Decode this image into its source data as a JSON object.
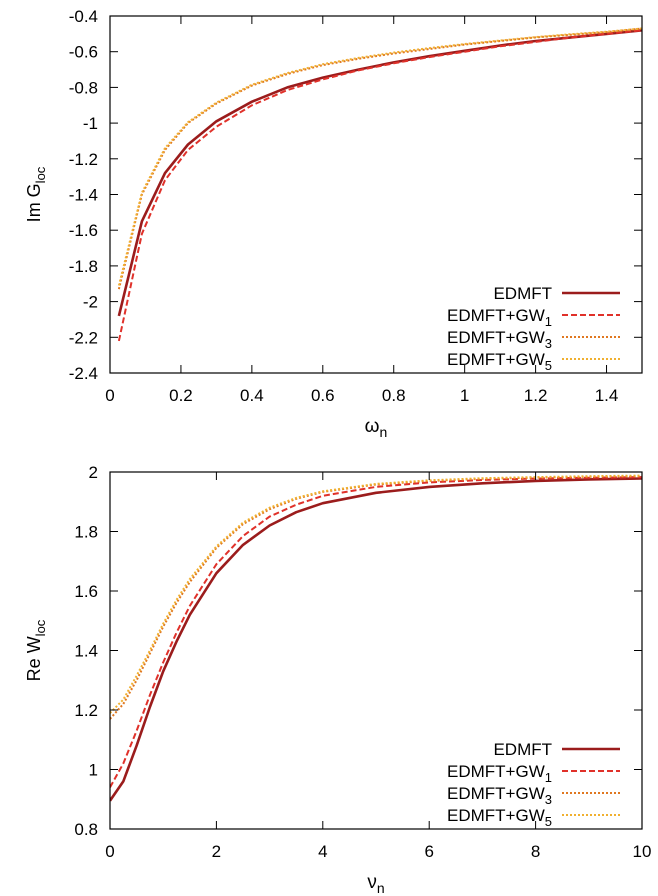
{
  "chart_data": [
    {
      "type": "line",
      "xlabel": "ω",
      "xlabel_sub": "n",
      "ylabel": "Im G",
      "ylabel_sub": "loc",
      "xlim": [
        0,
        1.5
      ],
      "ylim": [
        -2.4,
        -0.4
      ],
      "xticks": [
        0,
        0.2,
        0.4,
        0.6,
        0.8,
        1,
        1.2,
        1.4
      ],
      "xtick_labels": [
        "0",
        "0.2",
        "0.4",
        "0.6",
        "0.8",
        "1",
        "1.2",
        "1.4"
      ],
      "yticks": [
        -2.4,
        -2.2,
        -2,
        -1.8,
        -1.6,
        -1.4,
        -1.2,
        -1,
        -0.8,
        -0.6,
        -0.4
      ],
      "ytick_labels": [
        "-2.4",
        "-2.2",
        "-2",
        "-1.8",
        "-1.6",
        "-1.4",
        "-1.2",
        "-1",
        "-0.8",
        "-0.6",
        "-0.4"
      ],
      "grid": false,
      "legend_position": "bottom-right",
      "series": [
        {
          "name": "EDMFT",
          "name_sub": "",
          "color": "#9b1c1c",
          "dash": "solid",
          "x": [
            0.025,
            0.09,
            0.155,
            0.22,
            0.3,
            0.4,
            0.5,
            0.6,
            0.7,
            0.8,
            0.9,
            1.0,
            1.1,
            1.2,
            1.3,
            1.4,
            1.5
          ],
          "y": [
            -2.08,
            -1.55,
            -1.28,
            -1.12,
            -0.99,
            -0.88,
            -0.8,
            -0.745,
            -0.7,
            -0.66,
            -0.625,
            -0.595,
            -0.565,
            -0.54,
            -0.52,
            -0.5,
            -0.48
          ]
        },
        {
          "name": "EDMFT+GW",
          "name_sub": "1",
          "color": "#e0312a",
          "dash": "dashed",
          "x": [
            0.025,
            0.09,
            0.155,
            0.22,
            0.3,
            0.4,
            0.5,
            0.6,
            0.7,
            0.8,
            0.9,
            1.0,
            1.1,
            1.2,
            1.3,
            1.4,
            1.5
          ],
          "y": [
            -2.22,
            -1.62,
            -1.32,
            -1.15,
            -1.02,
            -0.9,
            -0.815,
            -0.755,
            -0.705,
            -0.665,
            -0.63,
            -0.6,
            -0.57,
            -0.545,
            -0.52,
            -0.5,
            -0.48
          ]
        },
        {
          "name": "EDMFT+GW",
          "name_sub": "3",
          "color": "#e07820",
          "dash": "dotted",
          "x": [
            0.025,
            0.09,
            0.155,
            0.22,
            0.3,
            0.4,
            0.5,
            0.6,
            0.7,
            0.8,
            0.9,
            1.0,
            1.1,
            1.2,
            1.3,
            1.4,
            1.5
          ],
          "y": [
            -1.93,
            -1.4,
            -1.15,
            -1.0,
            -0.89,
            -0.79,
            -0.725,
            -0.675,
            -0.64,
            -0.61,
            -0.585,
            -0.56,
            -0.54,
            -0.52,
            -0.505,
            -0.49,
            -0.47
          ]
        },
        {
          "name": "EDMFT+GW",
          "name_sub": "5",
          "color": "#f0b030",
          "dash": "dotted",
          "x": [
            0.025,
            0.09,
            0.155,
            0.22,
            0.3,
            0.4,
            0.5,
            0.6,
            0.7,
            0.8,
            0.9,
            1.0,
            1.1,
            1.2,
            1.3,
            1.4,
            1.5
          ],
          "y": [
            -1.91,
            -1.39,
            -1.14,
            -0.995,
            -0.885,
            -0.785,
            -0.72,
            -0.67,
            -0.635,
            -0.605,
            -0.58,
            -0.557,
            -0.537,
            -0.518,
            -0.502,
            -0.488,
            -0.47
          ]
        }
      ]
    },
    {
      "type": "line",
      "xlabel": "ν",
      "xlabel_sub": "n",
      "ylabel": "Re W",
      "ylabel_sub": "loc",
      "xlim": [
        0,
        10
      ],
      "ylim": [
        0.8,
        2
      ],
      "xticks": [
        0,
        2,
        4,
        6,
        8,
        10
      ],
      "xtick_labels": [
        "0",
        "2",
        "4",
        "6",
        "8",
        "10"
      ],
      "yticks": [
        0.8,
        1,
        1.2,
        1.4,
        1.6,
        1.8,
        2
      ],
      "ytick_labels": [
        "0.8",
        "1",
        "1.2",
        "1.4",
        "1.6",
        "1.8",
        "2"
      ],
      "grid": false,
      "legend_position": "bottom-right",
      "series": [
        {
          "name": "EDMFT",
          "name_sub": "",
          "color": "#9b1c1c",
          "dash": "solid",
          "x": [
            0,
            0.25,
            0.5,
            0.75,
            1,
            1.25,
            1.5,
            2,
            2.5,
            3,
            3.5,
            4,
            5,
            6,
            7,
            8,
            9,
            10
          ],
          "y": [
            0.895,
            0.96,
            1.08,
            1.21,
            1.33,
            1.43,
            1.52,
            1.66,
            1.755,
            1.82,
            1.865,
            1.895,
            1.93,
            1.95,
            1.962,
            1.97,
            1.975,
            1.978
          ]
        },
        {
          "name": "EDMFT+GW",
          "name_sub": "1",
          "color": "#e0312a",
          "dash": "dashed",
          "x": [
            0,
            0.25,
            0.5,
            0.75,
            1,
            1.25,
            1.5,
            2,
            2.5,
            3,
            3.5,
            4,
            5,
            6,
            7,
            8,
            9,
            10
          ],
          "y": [
            0.94,
            1.02,
            1.13,
            1.25,
            1.36,
            1.46,
            1.55,
            1.69,
            1.785,
            1.85,
            1.89,
            1.92,
            1.95,
            1.965,
            1.973,
            1.978,
            1.981,
            1.983
          ]
        },
        {
          "name": "EDMFT+GW",
          "name_sub": "3",
          "color": "#e07820",
          "dash": "dotted",
          "x": [
            0,
            0.25,
            0.5,
            0.75,
            1,
            1.25,
            1.5,
            2,
            2.5,
            3,
            3.5,
            4,
            5,
            6,
            7,
            8,
            9,
            10
          ],
          "y": [
            1.17,
            1.22,
            1.3,
            1.39,
            1.48,
            1.56,
            1.63,
            1.745,
            1.825,
            1.875,
            1.91,
            1.933,
            1.958,
            1.97,
            1.977,
            1.981,
            1.984,
            1.986
          ]
        },
        {
          "name": "EDMFT+GW",
          "name_sub": "5",
          "color": "#f0b030",
          "dash": "dotted",
          "x": [
            0,
            0.25,
            0.5,
            0.75,
            1,
            1.25,
            1.5,
            2,
            2.5,
            3,
            3.5,
            4,
            5,
            6,
            7,
            8,
            9,
            10
          ],
          "y": [
            1.19,
            1.235,
            1.315,
            1.4,
            1.49,
            1.57,
            1.64,
            1.75,
            1.83,
            1.88,
            1.913,
            1.935,
            1.96,
            1.972,
            1.979,
            1.983,
            1.986,
            1.988
          ]
        }
      ]
    }
  ]
}
